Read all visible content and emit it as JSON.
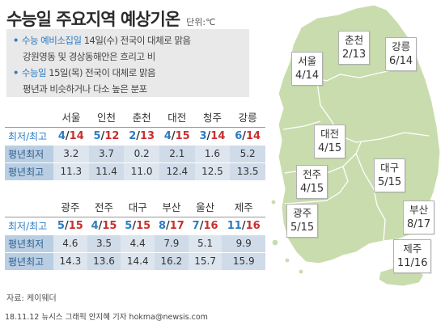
{
  "header": {
    "title": "수능일 주요지역 예상기온",
    "unit": "단위:℃"
  },
  "notes": {
    "n1_prefix": "수능 예비소집일",
    "n1_rest": " 14일(수) 전국이 대체로 맑음",
    "n1_line2": "강원영동 및 경상동해안은 흐리고 비",
    "n2_prefix": "수능일",
    "n2_rest": " 15일(목) 전국이 대체로 맑음",
    "n2_line2": "평년과 비슷하거나 다소 높은 분포"
  },
  "table1": {
    "cities": [
      "서울",
      "인천",
      "춘천",
      "대전",
      "청주",
      "강릉"
    ],
    "row_minmax_label": "최저/최고",
    "minmax": [
      [
        "4",
        "14"
      ],
      [
        "5",
        "12"
      ],
      [
        "2",
        "13"
      ],
      [
        "4",
        "15"
      ],
      [
        "3",
        "14"
      ],
      [
        "6",
        "14"
      ]
    ],
    "row_avg_min_label": "평년최저",
    "avg_min": [
      "3.2",
      "3.7",
      "0.2",
      "2.1",
      "1.6",
      "5.2"
    ],
    "row_avg_max_label": "평년최고",
    "avg_max": [
      "11.3",
      "11.4",
      "11.0",
      "12.4",
      "12.5",
      "13.5"
    ]
  },
  "table2": {
    "cities": [
      "광주",
      "전주",
      "대구",
      "부산",
      "울산",
      "제주"
    ],
    "row_minmax_label": "최저/최고",
    "minmax": [
      [
        "5",
        "15"
      ],
      [
        "4",
        "15"
      ],
      [
        "5",
        "15"
      ],
      [
        "8",
        "17"
      ],
      [
        "7",
        "16"
      ],
      [
        "11",
        "16"
      ]
    ],
    "row_avg_min_label": "평년최저",
    "avg_min": [
      "4.6",
      "3.5",
      "4.4",
      "7.9",
      "5.1",
      "9.9"
    ],
    "row_avg_max_label": "평년최고",
    "avg_max": [
      "14.3",
      "13.6",
      "14.4",
      "16.2",
      "15.7",
      "15.9"
    ]
  },
  "map_labels": {
    "seoul": {
      "city": "서울",
      "value": "4/14"
    },
    "chuncheon": {
      "city": "춘천",
      "value": "2/13"
    },
    "gangneung": {
      "city": "강릉",
      "value": "6/14"
    },
    "daejeon": {
      "city": "대전",
      "value": "4/15"
    },
    "jeonju": {
      "city": "전주",
      "value": "4/15"
    },
    "daegu": {
      "city": "대구",
      "value": "5/15"
    },
    "gwangju": {
      "city": "광주",
      "value": "5/15"
    },
    "busan": {
      "city": "부산",
      "value": "8/17"
    },
    "jeju": {
      "city": "제주",
      "value": "11/16"
    }
  },
  "source": "자료: 케이웨더",
  "footer": "18.11.12 뉴시스 그래픽 안지혜 기자 hokma@newsis.com",
  "colors": {
    "map_fill": "#c9dcae",
    "low": "#2e7cc2",
    "high": "#c8302f",
    "note_bg": "#e9e9e9",
    "avg_row_bg": "#dde5ee"
  }
}
